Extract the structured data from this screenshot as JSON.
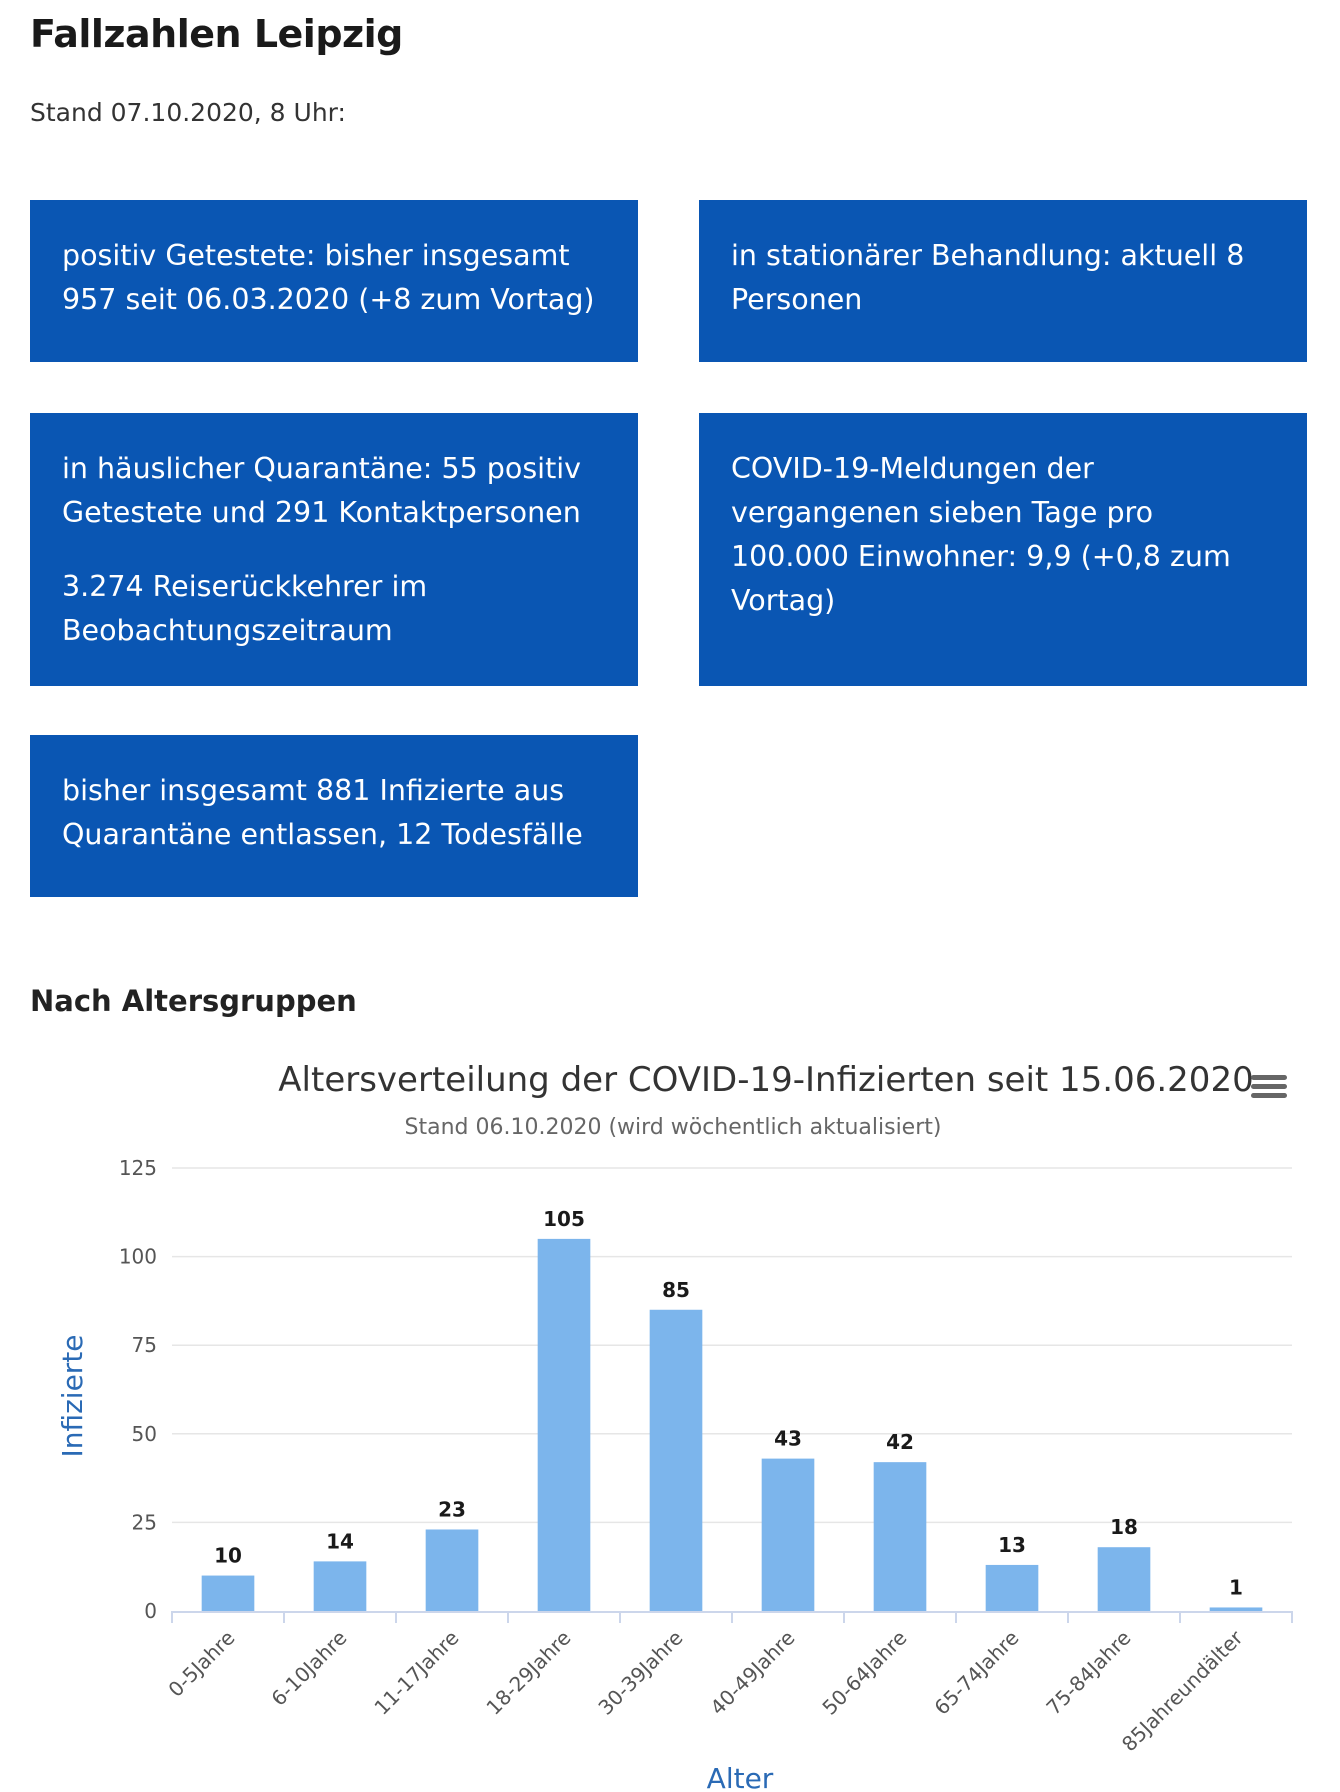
{
  "page": {
    "title": "Fallzahlen Leipzig",
    "stand": "Stand 07.10.2020, 8 Uhr:"
  },
  "boxes": {
    "positive": "positiv Getestete: bisher insgesamt 957 seit 06.03.2020 (+8 zum Vortag)",
    "stationaer": "in stationärer Behandlung: aktuell 8 Personen",
    "quarantaene": "in häuslicher Quarantäne: 55 positiv Getestete und 291 Kontaktpersonen",
    "reise": "3.274 Reiserückkehrer im Beobachtungszeitraum",
    "inzidenz": "COVID-19-Meldungen der vergangenen sieben Tage pro 100.000 Einwohner: 9,9 (+0,8 zum Vortag)",
    "entlassen": "bisher insgesamt 881 Infizierte aus Quarantäne entlassen, 12 Todesfälle"
  },
  "section_heading": "Nach Altersgruppen",
  "colors": {
    "box_bg": "#0a56b3",
    "bar": "#7cb5ec",
    "axis_title": "#2a6ab5"
  },
  "menu_icon": "hamburger-menu-icon",
  "chart_data": {
    "type": "bar",
    "title": "Altersverteilung der COVID-19-Infizierten seit 15.06.2020",
    "subtitle": "Stand 06.10.2020 (wird wöchentlich aktualisiert)",
    "xlabel": "Alter",
    "ylabel": "Infizierte",
    "ylim": [
      0,
      125
    ],
    "yticks": [
      0,
      25,
      50,
      75,
      100,
      125
    ],
    "grid": true,
    "legend": "none",
    "categories": [
      "0-5Jahre",
      "6-10Jahre",
      "11-17Jahre",
      "18-29Jahre",
      "30-39Jahre",
      "40-49Jahre",
      "50-64Jahre",
      "65-74Jahre",
      "75-84Jahre",
      "85Jahreundälter"
    ],
    "values": [
      10,
      14,
      23,
      105,
      85,
      43,
      42,
      13,
      18,
      1
    ]
  }
}
